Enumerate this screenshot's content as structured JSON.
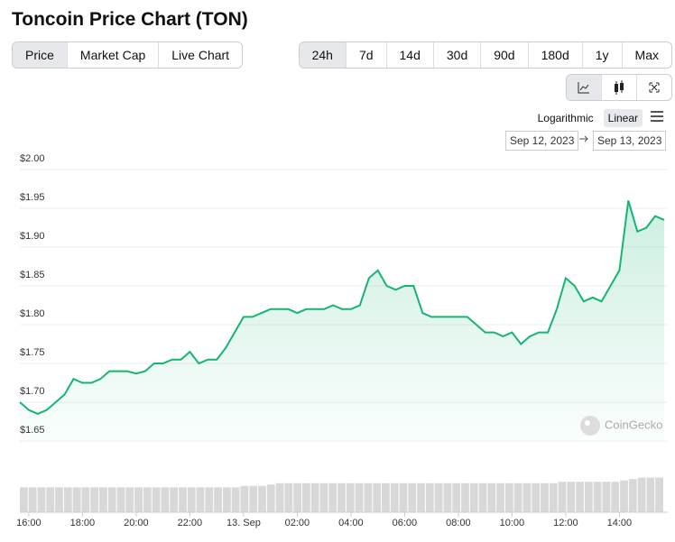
{
  "title": "Toncoin Price Chart (TON)",
  "tabs": [
    "Price",
    "Market Cap",
    "Live Chart"
  ],
  "ranges": [
    "24h",
    "7d",
    "14d",
    "30d",
    "90d",
    "180d",
    "1y",
    "Max"
  ],
  "scale_options": [
    "Logarithmic",
    "Linear"
  ],
  "active": {
    "tab": 0,
    "range": 0,
    "scale": 1
  },
  "date_from": "Sep 12, 2023",
  "date_to": "Sep 13, 2023",
  "watermark": "CoinGecko",
  "chart_data": {
    "type": "line",
    "color": "#16b572",
    "categories": [
      null,
      "16:00",
      null,
      null,
      null,
      null,
      null,
      "18:00",
      null,
      null,
      null,
      null,
      null,
      "20:00",
      null,
      null,
      null,
      null,
      null,
      "22:00",
      null,
      null,
      null,
      null,
      null,
      "13. Sep",
      null,
      null,
      null,
      null,
      null,
      "02:00",
      null,
      null,
      null,
      null,
      null,
      "04:00",
      null,
      null,
      null,
      null,
      null,
      "06:00",
      null,
      null,
      null,
      null,
      null,
      "08:00",
      null,
      null,
      null,
      null,
      null,
      "10:00",
      null,
      null,
      null,
      null,
      null,
      "12:00",
      null,
      null,
      null,
      null,
      null,
      "14:00",
      null,
      null,
      null,
      null,
      null
    ],
    "values": [
      1.7,
      1.69,
      1.685,
      1.69,
      1.7,
      1.71,
      1.73,
      1.725,
      1.725,
      1.73,
      1.74,
      1.74,
      1.74,
      1.737,
      1.74,
      1.75,
      1.75,
      1.755,
      1.755,
      1.765,
      1.75,
      1.755,
      1.755,
      1.77,
      1.79,
      1.81,
      1.81,
      1.815,
      1.82,
      1.82,
      1.82,
      1.815,
      1.82,
      1.82,
      1.82,
      1.825,
      1.82,
      1.82,
      1.825,
      1.86,
      1.87,
      1.85,
      1.845,
      1.85,
      1.85,
      1.815,
      1.81,
      1.81,
      1.81,
      1.81,
      1.81,
      1.8,
      1.79,
      1.79,
      1.785,
      1.79,
      1.775,
      1.785,
      1.79,
      1.79,
      1.82,
      1.86,
      1.85,
      1.83,
      1.835,
      1.83,
      1.85,
      1.87,
      1.96,
      1.92,
      1.925,
      1.94,
      1.935
    ],
    "volume": [
      18,
      18,
      18,
      18,
      18,
      18,
      18,
      18,
      18,
      18,
      18,
      18,
      18,
      18,
      18,
      18,
      18,
      18,
      18,
      18,
      18,
      18,
      18,
      18,
      18,
      19,
      19,
      19,
      20,
      21,
      21,
      21,
      21,
      21,
      21,
      21,
      21,
      21,
      21,
      21,
      21,
      21,
      21,
      21,
      21,
      21,
      21,
      21,
      21,
      21,
      21,
      21,
      21,
      21,
      21,
      21,
      21,
      21,
      21,
      21,
      21,
      22,
      22,
      22,
      22,
      22,
      22,
      22,
      23,
      24,
      25,
      25,
      25
    ],
    "ylim": [
      1.65,
      2.0
    ],
    "yticks": [
      {
        "value": 1.65,
        "label": "$1.65"
      },
      {
        "value": 1.7,
        "label": "$1.70"
      },
      {
        "value": 1.75,
        "label": "$1.75"
      },
      {
        "value": 1.8,
        "label": "$1.80"
      },
      {
        "value": 1.85,
        "label": "$1.85"
      },
      {
        "value": 1.9,
        "label": "$1.90"
      },
      {
        "value": 1.95,
        "label": "$1.95"
      },
      {
        "value": 2.0,
        "label": "$2.00"
      }
    ],
    "grid": true
  }
}
